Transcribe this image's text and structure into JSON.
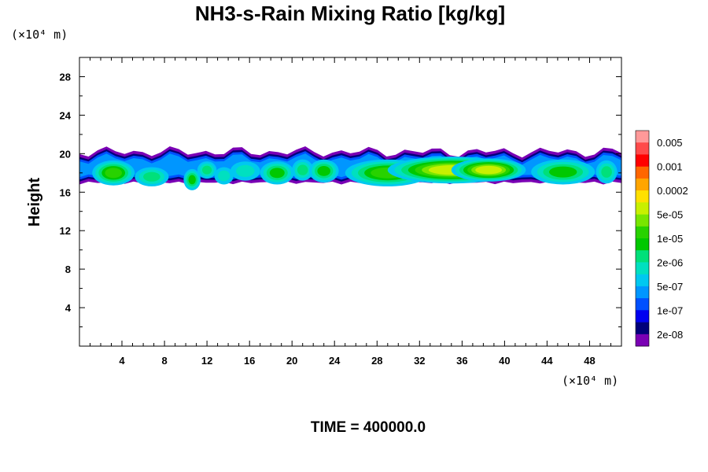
{
  "chart_data": {
    "type": "heatmap",
    "title": "NH3-s-Rain Mixing Ratio [kg/kg]",
    "xlabel": "",
    "ylabel": "Height",
    "x_unit": "(×10⁴ m)",
    "y_unit": "(×10⁴ m)",
    "xlim": [
      0,
      51
    ],
    "ylim": [
      0,
      30
    ],
    "x_ticks": [
      "4",
      "8",
      "12",
      "16",
      "20",
      "24",
      "28",
      "32",
      "36",
      "40",
      "44",
      "48"
    ],
    "y_ticks": [
      "4",
      "8",
      "12",
      "16",
      "20",
      "24",
      "28"
    ],
    "x_tick_values": [
      4,
      8,
      12,
      16,
      20,
      24,
      28,
      32,
      36,
      40,
      44,
      48
    ],
    "y_tick_values": [
      4,
      8,
      12,
      16,
      20,
      24,
      28
    ],
    "colorbar": {
      "labels": [
        "0.005",
        "0.001",
        "0.0002",
        "5e-05",
        "1e-05",
        "2e-06",
        "5e-07",
        "1e-07",
        "2e-08"
      ],
      "colors": [
        "#ff9999",
        "#ff4a4a",
        "#ff0000",
        "#ff6600",
        "#ffa500",
        "#ffe000",
        "#c8f000",
        "#78e600",
        "#28d200",
        "#00c800",
        "#00e07a",
        "#00e0c0",
        "#00c8f0",
        "#0096ff",
        "#0050ff",
        "#0000f0",
        "#00007a",
        "#7a00b4"
      ]
    },
    "layer": {
      "base_altitude": 17.0,
      "top_altitude": 20.0,
      "cells": [
        {
          "x": 0.5,
          "y": 18.2,
          "w": 0.7,
          "h": 1.2,
          "level": 4
        },
        {
          "x": 3.2,
          "y": 18.0,
          "w": 2.0,
          "h": 1.3,
          "level": 9
        },
        {
          "x": 6.8,
          "y": 17.6,
          "w": 1.6,
          "h": 1.0,
          "level": 7
        },
        {
          "x": 10.6,
          "y": 17.3,
          "w": 0.8,
          "h": 1.1,
          "level": 8
        },
        {
          "x": 12.0,
          "y": 18.3,
          "w": 0.9,
          "h": 0.9,
          "level": 7
        },
        {
          "x": 13.6,
          "y": 17.7,
          "w": 0.9,
          "h": 0.9,
          "level": 6
        },
        {
          "x": 15.6,
          "y": 18.2,
          "w": 1.4,
          "h": 1.0,
          "level": 6
        },
        {
          "x": 18.6,
          "y": 18.0,
          "w": 1.6,
          "h": 1.2,
          "level": 8
        },
        {
          "x": 21.0,
          "y": 18.3,
          "w": 1.0,
          "h": 1.1,
          "level": 7
        },
        {
          "x": 23.0,
          "y": 18.2,
          "w": 1.4,
          "h": 1.2,
          "level": 8
        },
        {
          "x": 29.0,
          "y": 18.0,
          "w": 4.0,
          "h": 1.4,
          "level": 9
        },
        {
          "x": 35.0,
          "y": 18.3,
          "w": 6.0,
          "h": 1.4,
          "level": 11
        },
        {
          "x": 38.5,
          "y": 18.3,
          "w": 3.5,
          "h": 1.2,
          "level": 11
        },
        {
          "x": 45.5,
          "y": 18.1,
          "w": 3.0,
          "h": 1.3,
          "level": 8
        },
        {
          "x": 49.6,
          "y": 18.1,
          "w": 1.0,
          "h": 1.2,
          "level": 7
        }
      ]
    }
  },
  "footer": {
    "time_label": "TIME = 400000.0"
  }
}
